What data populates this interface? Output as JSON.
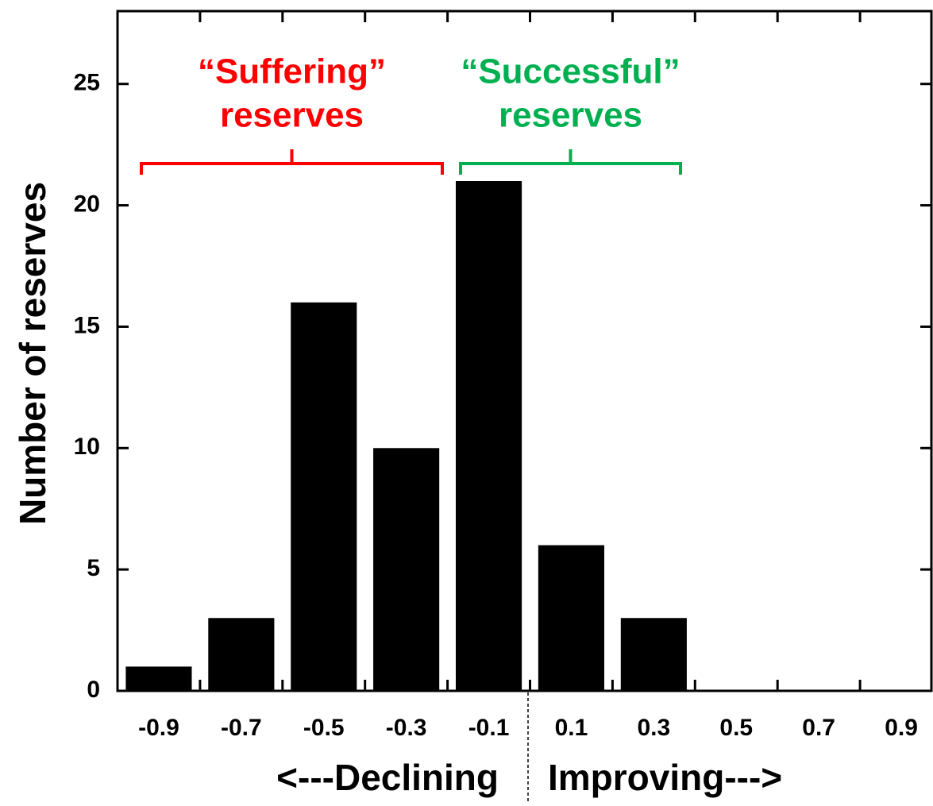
{
  "chart_data": {
    "type": "bar",
    "categories": [
      "-0.9",
      "-0.7",
      "-0.5",
      "-0.3",
      "-0.1",
      "0.1",
      "0.3",
      "0.5",
      "0.7",
      "0.9"
    ],
    "values": [
      1,
      3,
      16,
      10,
      21,
      6,
      3,
      0,
      0,
      0
    ],
    "color": "#000000",
    "ylim": [
      0,
      28
    ],
    "yticks": [
      0,
      5,
      10,
      15,
      20,
      25
    ],
    "y_label": "Number of reserves",
    "x_label_left": "<---Declining",
    "x_label_right": "Improving--->",
    "annotations": [
      {
        "lines": [
          "“Suffering”",
          "reserves"
        ],
        "color": "#ff0000"
      },
      {
        "lines": [
          "“Successful”",
          "reserves"
        ],
        "color": "#00b050"
      }
    ]
  }
}
